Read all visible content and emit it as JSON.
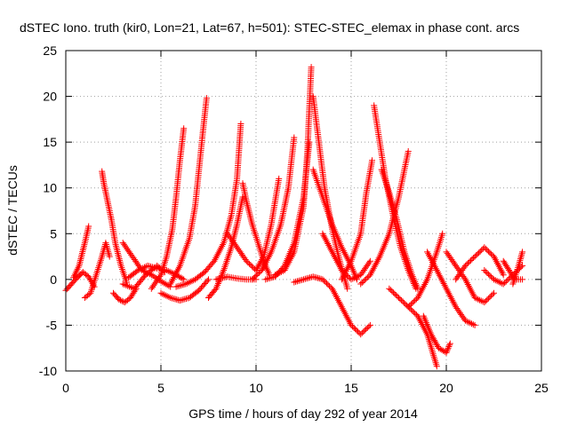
{
  "chart_data": {
    "type": "scatter",
    "title": "dSTEC Iono. truth (kir0, Lon=21, Lat=67, h=501): STEC-STEC_elemax in phase cont. arcs",
    "xlabel": "GPS time / hours of day 292 of year 2014",
    "ylabel": "dSTEC  / TECUs",
    "xlim": [
      0,
      25
    ],
    "ylim": [
      -10,
      25
    ],
    "x_ticks": [
      0,
      5,
      10,
      15,
      20,
      25
    ],
    "y_ticks": [
      -10,
      -5,
      0,
      5,
      10,
      15,
      20,
      25
    ],
    "grid": true,
    "legend": "none",
    "marker": "plus",
    "color": "#ff0000",
    "arcs": [
      {
        "x": [
          0.0,
          0.3,
          0.6,
          0.9,
          1.2,
          1.5
        ],
        "y": [
          -1.2,
          -0.5,
          0.2,
          0.8,
          0.3,
          -0.8
        ]
      },
      {
        "x": [
          0.4,
          0.7,
          1.0,
          1.2
        ],
        "y": [
          0.2,
          1.5,
          4.0,
          5.8
        ]
      },
      {
        "x": [
          1.0,
          1.3,
          1.6,
          1.9,
          2.1,
          2.3
        ],
        "y": [
          -2.0,
          -1.5,
          0.5,
          2.5,
          4.0,
          2.5
        ]
      },
      {
        "x": [
          1.9,
          2.0,
          2.2,
          2.4,
          2.6,
          2.9,
          3.2
        ],
        "y": [
          11.8,
          10.5,
          8.5,
          6.5,
          4.0,
          1.5,
          -0.3
        ]
      },
      {
        "x": [
          2.5,
          2.8,
          3.1,
          3.4,
          3.7
        ],
        "y": [
          -1.5,
          -2.2,
          -2.5,
          -2.0,
          -1.0
        ]
      },
      {
        "x": [
          3.0,
          3.5,
          4.0,
          4.5,
          5.0,
          5.5
        ],
        "y": [
          4.0,
          2.5,
          1.0,
          0.5,
          -0.2,
          -0.8
        ]
      },
      {
        "x": [
          3.0,
          3.6,
          4.2,
          4.8,
          5.2
        ],
        "y": [
          -0.5,
          -1.0,
          0.5,
          1.5,
          0.8
        ]
      },
      {
        "x": [
          3.3,
          3.8,
          4.3,
          4.8,
          5.3,
          5.8,
          6.2
        ],
        "y": [
          0.2,
          1.0,
          1.5,
          1.2,
          1.0,
          0.5,
          0.0
        ]
      },
      {
        "x": [
          4.5,
          5.0,
          5.3,
          5.6,
          5.8,
          6.0,
          6.2
        ],
        "y": [
          -1.0,
          0.5,
          2.5,
          5.5,
          9.0,
          13.0,
          16.5
        ]
      },
      {
        "x": [
          5.0,
          5.5,
          6.0,
          6.5,
          7.0,
          7.5
        ],
        "y": [
          -1.5,
          -2.0,
          -2.3,
          -2.0,
          -1.2,
          0.0
        ]
      },
      {
        "x": [
          5.5,
          6.0,
          6.5,
          6.8,
          7.0,
          7.2,
          7.4
        ],
        "y": [
          -0.5,
          1.5,
          4.5,
          8.0,
          12.0,
          16.0,
          19.8
        ]
      },
      {
        "x": [
          5.8,
          6.3,
          6.8,
          7.3,
          7.8,
          8.3,
          8.7,
          9.0,
          9.2
        ],
        "y": [
          -0.8,
          -0.5,
          0.0,
          0.8,
          2.0,
          4.0,
          7.0,
          11.0,
          17.0
        ]
      },
      {
        "x": [
          7.5,
          7.9,
          8.3,
          8.7,
          9.0,
          9.3
        ],
        "y": [
          -2.0,
          -1.0,
          1.0,
          3.5,
          6.0,
          9.0
        ]
      },
      {
        "x": [
          7.9,
          8.5,
          9.0,
          9.5,
          10.0
        ],
        "y": [
          0.0,
          0.3,
          0.1,
          0.0,
          0.0
        ]
      },
      {
        "x": [
          8.5,
          9.0,
          9.5,
          10.0,
          10.4,
          10.8,
          11.2
        ],
        "y": [
          5.0,
          3.5,
          2.0,
          1.0,
          2.5,
          6.0,
          11.0
        ]
      },
      {
        "x": [
          9.3,
          9.5,
          9.8,
          10.1,
          10.4,
          10.7
        ],
        "y": [
          10.5,
          8.5,
          6.0,
          4.0,
          2.0,
          0.5
        ]
      },
      {
        "x": [
          9.8,
          10.3,
          10.8,
          11.3,
          11.7,
          12.0
        ],
        "y": [
          0.0,
          1.0,
          3.0,
          6.0,
          10.0,
          15.5
        ]
      },
      {
        "x": [
          10.5,
          11.0,
          11.5,
          12.0,
          12.5,
          12.8
        ],
        "y": [
          0.0,
          0.3,
          1.5,
          4.0,
          9.0,
          15.0
        ]
      },
      {
        "x": [
          11.0,
          11.5,
          12.0,
          12.5,
          12.7,
          12.9
        ],
        "y": [
          0.5,
          1.0,
          3.0,
          8.0,
          14.0,
          23.2
        ]
      },
      {
        "x": [
          12.0,
          12.5,
          13.0,
          13.5,
          14.0,
          14.5,
          15.0,
          15.5,
          16.0
        ],
        "y": [
          -0.3,
          0.0,
          0.3,
          0.0,
          -1.0,
          -3.0,
          -5.0,
          -6.0,
          -5.0
        ]
      },
      {
        "x": [
          13.0,
          13.3,
          13.6,
          14.0,
          14.4,
          14.8
        ],
        "y": [
          20.0,
          15.0,
          10.0,
          5.5,
          2.0,
          -1.0
        ]
      },
      {
        "x": [
          13.0,
          13.5,
          14.0,
          14.5,
          15.0,
          15.3
        ],
        "y": [
          12.0,
          9.0,
          6.0,
          3.5,
          1.5,
          0.0
        ]
      },
      {
        "x": [
          13.5,
          14.0,
          14.5,
          15.0,
          15.5,
          16.0
        ],
        "y": [
          5.0,
          3.0,
          1.0,
          0.0,
          0.5,
          2.0
        ]
      },
      {
        "x": [
          14.5,
          15.0,
          15.5,
          15.8,
          16.1
        ],
        "y": [
          0.0,
          2.0,
          5.0,
          9.5,
          13.0
        ]
      },
      {
        "x": [
          15.5,
          16.0,
          16.5,
          17.0,
          17.5,
          18.0
        ],
        "y": [
          -0.5,
          0.5,
          2.5,
          5.0,
          9.0,
          14.0
        ]
      },
      {
        "x": [
          16.2,
          16.5,
          16.8,
          17.2,
          17.6,
          18.0,
          18.4
        ],
        "y": [
          19.0,
          15.0,
          11.0,
          7.0,
          3.5,
          1.0,
          -1.0
        ]
      },
      {
        "x": [
          16.6,
          17.0,
          17.4,
          17.8,
          18.2,
          18.5
        ],
        "y": [
          12.0,
          9.5,
          6.5,
          3.0,
          0.5,
          -1.0
        ]
      },
      {
        "x": [
          17.0,
          17.5,
          18.0,
          18.5,
          19.0,
          19.5
        ],
        "y": [
          -1.0,
          -2.0,
          -3.0,
          -4.0,
          -6.0,
          -9.5
        ]
      },
      {
        "x": [
          18.0,
          18.5,
          19.0,
          19.5,
          19.8
        ],
        "y": [
          -3.0,
          -2.0,
          0.0,
          3.0,
          5.0
        ]
      },
      {
        "x": [
          18.8,
          19.2,
          19.6,
          20.0,
          20.2
        ],
        "y": [
          -4.0,
          -6.0,
          -7.5,
          -8.0,
          -7.0
        ]
      },
      {
        "x": [
          19.0,
          19.5,
          20.0,
          20.5,
          21.0,
          21.5
        ],
        "y": [
          3.0,
          1.0,
          -1.0,
          -3.0,
          -4.5,
          -5.0
        ]
      },
      {
        "x": [
          20.0,
          20.5,
          21.0,
          21.5,
          22.0,
          22.5
        ],
        "y": [
          3.0,
          1.5,
          0.0,
          -2.0,
          -2.5,
          -1.5
        ]
      },
      {
        "x": [
          20.5,
          21.0,
          21.5,
          22.0,
          22.5,
          23.0
        ],
        "y": [
          0.0,
          1.5,
          2.5,
          3.5,
          2.5,
          0.5
        ]
      },
      {
        "x": [
          22.0,
          22.5,
          23.0,
          23.5,
          24.0
        ],
        "y": [
          1.0,
          0.0,
          -0.5,
          0.5,
          1.5
        ]
      },
      {
        "x": [
          23.0,
          23.3,
          23.6,
          24.0
        ],
        "y": [
          2.0,
          1.0,
          0.0,
          0.0
        ]
      },
      {
        "x": [
          23.5,
          23.8,
          24.0
        ],
        "y": [
          -0.5,
          1.5,
          3.0
        ]
      }
    ]
  }
}
